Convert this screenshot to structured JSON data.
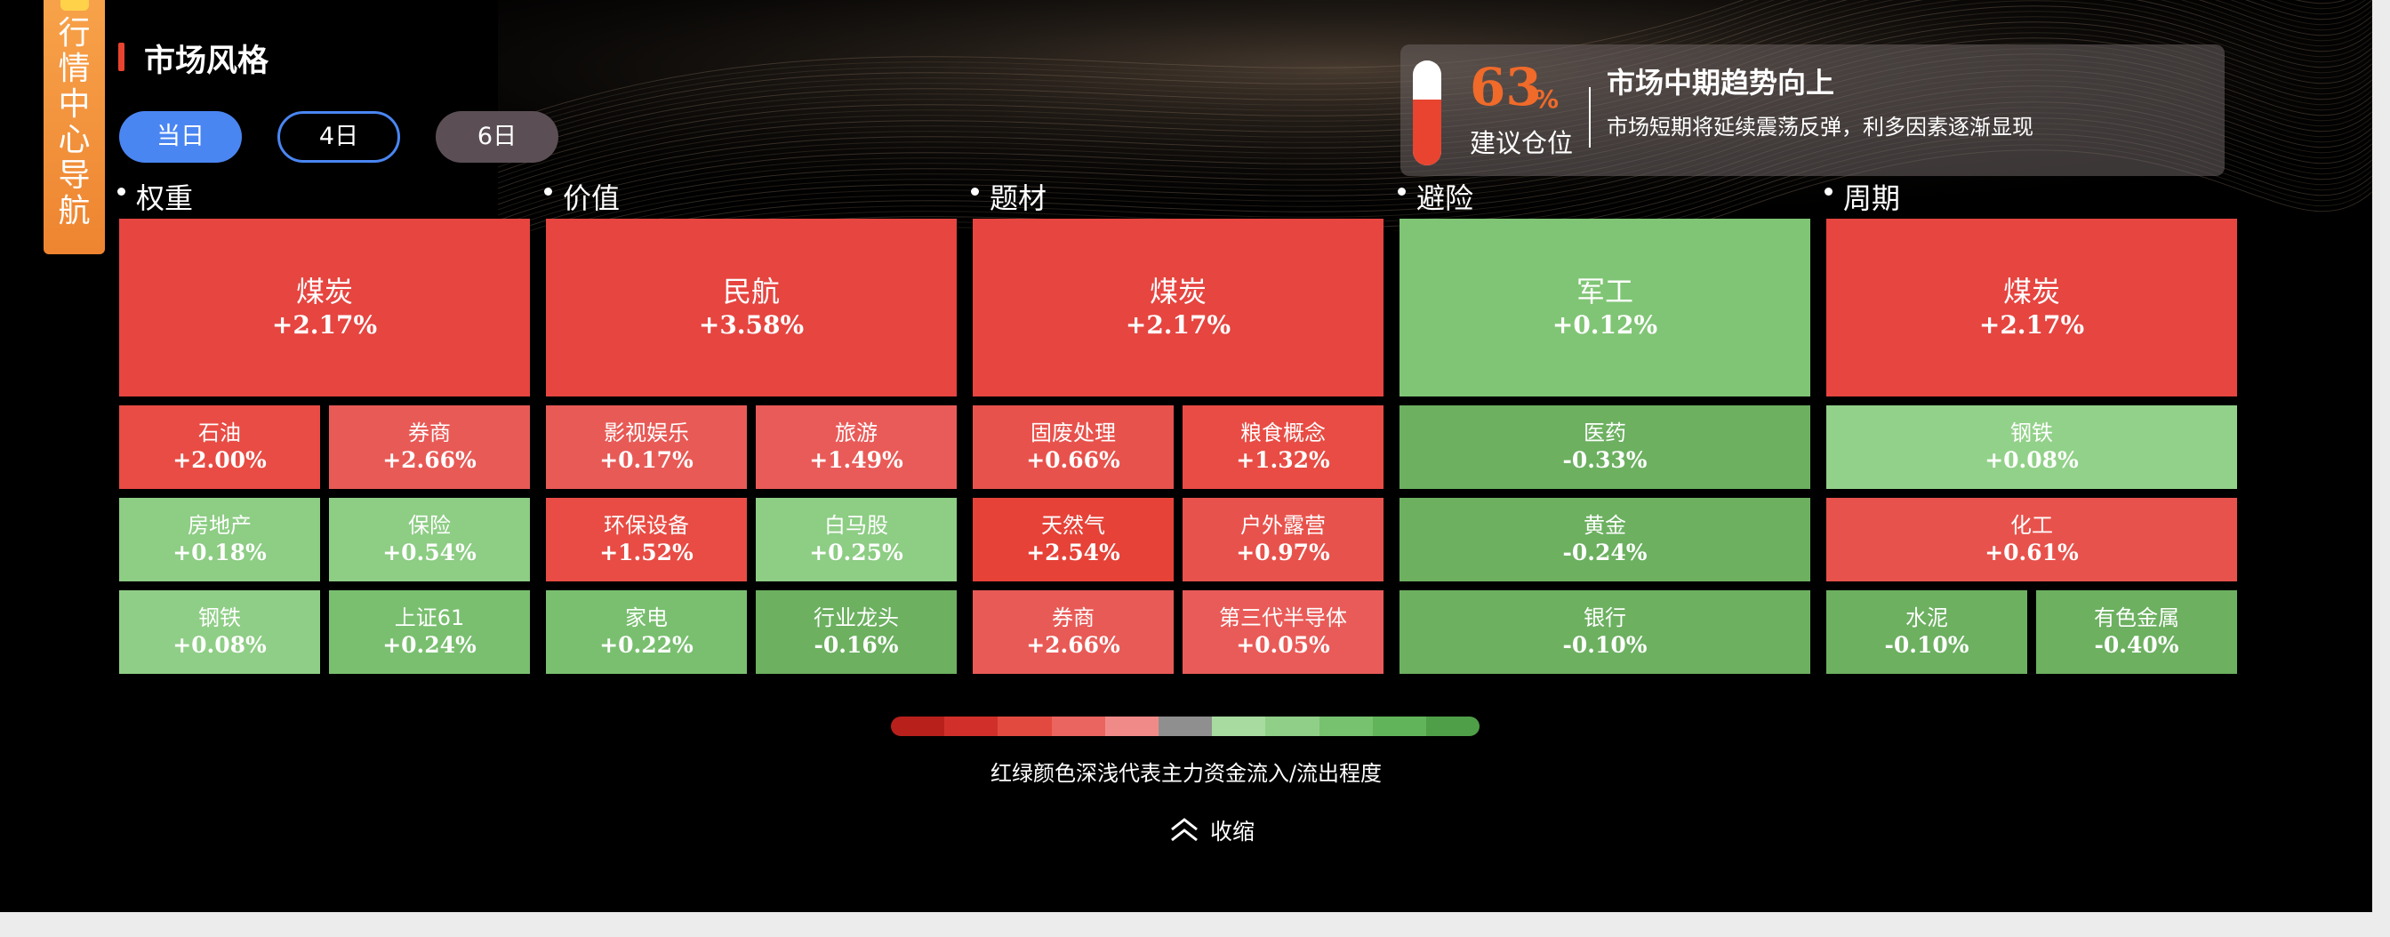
{
  "nav_tab": {
    "chars": [
      "行",
      "情",
      "中",
      "心",
      "导",
      "航"
    ]
  },
  "title": "市场风格",
  "tabs": [
    {
      "label": "当日"
    },
    {
      "label": "4日"
    },
    {
      "label": "6日"
    }
  ],
  "advice": {
    "percent": "63",
    "percent_unit": "%",
    "position_label": "建议仓位",
    "title": "市场中期趋势向上",
    "subtitle": "市场短期将延续震荡反弹，利多因素逐渐显现",
    "level": 0.63
  },
  "columns": [
    {
      "label": "权重",
      "top": {
        "name": "煤炭",
        "pct": "+2.17%"
      },
      "rows": [
        [
          {
            "name": "石油",
            "pct": "+2.00%"
          },
          {
            "name": "券商",
            "pct": "+2.66%"
          }
        ],
        [
          {
            "name": "房地产",
            "pct": "+0.18%"
          },
          {
            "name": "保险",
            "pct": "+0.54%"
          }
        ],
        [
          {
            "name": "钢铁",
            "pct": "+0.08%"
          },
          {
            "name": "上证61",
            "pct": "+0.24%"
          }
        ]
      ]
    },
    {
      "label": "价值",
      "top": {
        "name": "民航",
        "pct": "+3.58%"
      },
      "rows": [
        [
          {
            "name": "影视娱乐",
            "pct": "+0.17%"
          },
          {
            "name": "旅游",
            "pct": "+1.49%"
          }
        ],
        [
          {
            "name": "环保设备",
            "pct": "+1.52%"
          },
          {
            "name": "白马股",
            "pct": "+0.25%"
          }
        ],
        [
          {
            "name": "家电",
            "pct": "+0.22%"
          },
          {
            "name": "行业龙头",
            "pct": "-0.16%"
          }
        ]
      ]
    },
    {
      "label": "题材",
      "top": {
        "name": "煤炭",
        "pct": "+2.17%"
      },
      "rows": [
        [
          {
            "name": "固废处理",
            "pct": "+0.66%"
          },
          {
            "name": "粮食概念",
            "pct": "+1.32%"
          }
        ],
        [
          {
            "name": "天然气",
            "pct": "+2.54%"
          },
          {
            "name": "户外露营",
            "pct": "+0.97%"
          }
        ],
        [
          {
            "name": "券商",
            "pct": "+2.66%"
          },
          {
            "name": "第三代半导体",
            "pct": "+0.05%"
          }
        ]
      ]
    },
    {
      "label": "避险",
      "top": {
        "name": "军工",
        "pct": "+0.12%"
      },
      "rows": [
        [
          {
            "name": "医药",
            "pct": "-0.33%"
          }
        ],
        [
          {
            "name": "黄金",
            "pct": "-0.24%"
          }
        ],
        [
          {
            "name": "银行",
            "pct": "-0.10%"
          }
        ]
      ]
    },
    {
      "label": "周期",
      "top": {
        "name": "煤炭",
        "pct": "+2.17%"
      },
      "rows": [
        [
          {
            "name": "钢铁",
            "pct": "+0.08%"
          }
        ],
        [
          {
            "name": "化工",
            "pct": "+0.61%"
          }
        ],
        [
          {
            "name": "水泥",
            "pct": "-0.10%"
          },
          {
            "name": "有色金属",
            "pct": "-0.40%"
          }
        ]
      ]
    }
  ],
  "legend": {
    "caption": "红绿颜色深浅代表主力资金流入/流出程度"
  },
  "collapse_label": "收缩"
}
